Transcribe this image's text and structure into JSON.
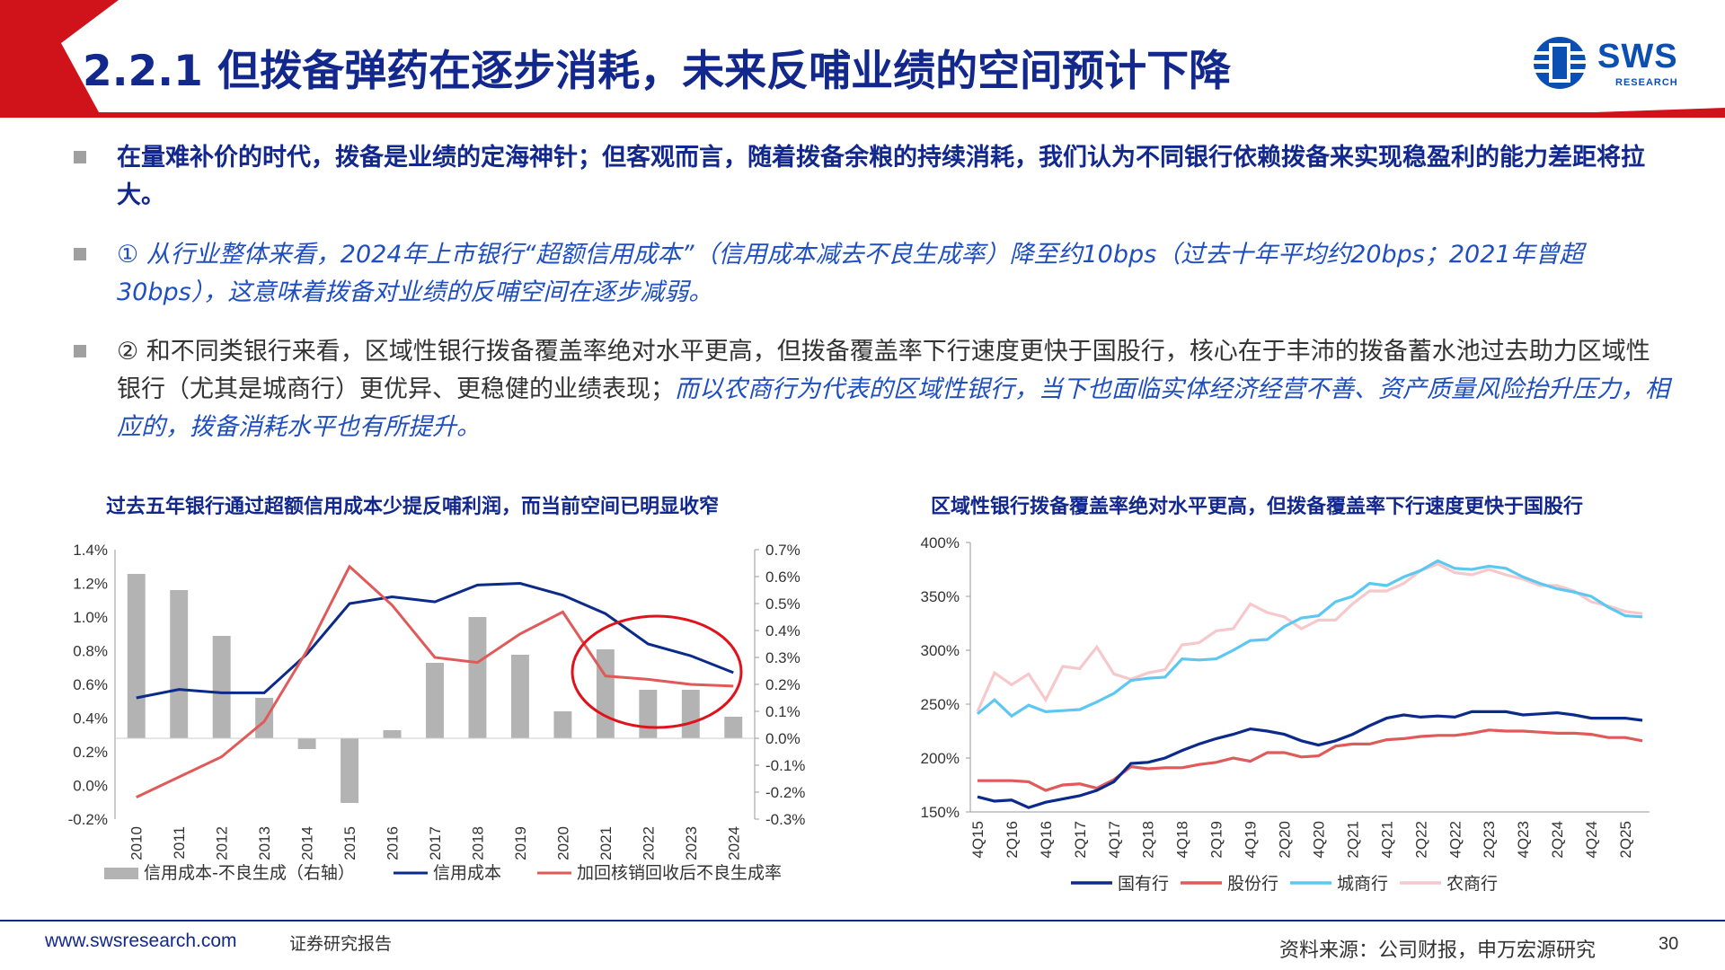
{
  "header": {
    "title": "2.2.1 但拨备弹药在逐步消耗，未来反哺业绩的空间预计下降",
    "logo_text": "SWS",
    "logo_sub": "RESEARCH",
    "accent_red": "#d0121b",
    "brand_blue": "#12288c"
  },
  "bullets": [
    {
      "text": "在量难补价的时代，拨备是业绩的定海神针；但客观而言，随着拨备余粮的持续消耗，我们认为不同银行依赖拨备来实现稳盈利的能力差距将拉大。"
    },
    {
      "text": "① 从行业整体来看，2024年上市银行“超额信用成本”（信用成本减去不良生成率）降至约10bps（过去十年平均约20bps；2021年曾超30bps），这意味着拨备对业绩的反哺空间在逐步减弱。"
    },
    {
      "text_plain": "② 和不同类银行来看，区域性银行拨备覆盖率绝对水平更高，但拨备覆盖率下行速度更快于国股行，核心在于丰沛的拨备蓄水池过去助力区域性银行（尤其是城商行）更优异、更稳健的业绩表现；",
      "text_emph": "而以农商行为代表的区域性银行，当下也面临实体经济经营不善、资产质量风险抬升压力，相应的，拨备消耗水平也有所提升。"
    }
  ],
  "chart_titles": {
    "left": "过去五年银行通过超额信用成本少提反哺利润，而当前空间已明显收窄",
    "right": "区域性银行拨备覆盖率绝对水平更高，但拨备覆盖率下行速度更快于国股行"
  },
  "chart_data": [
    {
      "type": "bar+line",
      "title": "过去五年银行通过超额信用成本少提反哺利润，而当前空间已明显收窄",
      "categories": [
        "2010",
        "2011",
        "2012",
        "2013",
        "2014",
        "2015",
        "2016",
        "2017",
        "2018",
        "2019",
        "2020",
        "2021",
        "2022",
        "2023",
        "2024"
      ],
      "y_left": {
        "range": [
          -0.2,
          1.4
        ],
        "ticks": [
          "-0.2%",
          "0.0%",
          "0.2%",
          "0.4%",
          "0.6%",
          "0.8%",
          "1.0%",
          "1.2%",
          "1.4%"
        ]
      },
      "y_right": {
        "range": [
          -0.3,
          0.7
        ],
        "ticks": [
          "-0.3%",
          "-0.2%",
          "-0.1%",
          "0.0%",
          "0.1%",
          "0.2%",
          "0.3%",
          "0.4%",
          "0.5%",
          "0.6%",
          "0.7%"
        ]
      },
      "series": [
        {
          "name": "信用成本-不良生成（右轴）",
          "type": "bar",
          "axis": "right",
          "color": "#b3b3b3",
          "values": [
            0.61,
            0.55,
            0.38,
            0.15,
            -0.04,
            -0.24,
            0.03,
            0.28,
            0.45,
            0.31,
            0.1,
            0.33,
            0.18,
            0.18,
            0.08
          ]
        },
        {
          "name": "信用成本",
          "type": "line",
          "axis": "left",
          "color": "#0b2a8a",
          "values": [
            0.52,
            0.57,
            0.55,
            0.55,
            0.78,
            1.08,
            1.12,
            1.09,
            1.19,
            1.2,
            1.13,
            1.02,
            0.84,
            0.77,
            0.67
          ]
        },
        {
          "name": "加回核销回收后不良生成率",
          "type": "line",
          "axis": "left",
          "color": "#e05a5a",
          "values": [
            -0.07,
            0.05,
            0.17,
            0.38,
            0.8,
            1.3,
            1.07,
            0.76,
            0.73,
            0.9,
            1.03,
            0.65,
            0.63,
            0.6,
            0.59
          ]
        }
      ],
      "legend_position": "bottom"
    },
    {
      "type": "line",
      "title": "区域性银行拨备覆盖率绝对水平更高，但拨备覆盖率下行速度更快于国股行",
      "x": [
        "4Q15",
        "1Q16",
        "2Q16",
        "3Q16",
        "4Q16",
        "1Q17",
        "2Q17",
        "3Q17",
        "4Q17",
        "1Q18",
        "2Q18",
        "3Q18",
        "4Q18",
        "1Q19",
        "2Q19",
        "3Q19",
        "4Q19",
        "1Q20",
        "2Q20",
        "3Q20",
        "4Q20",
        "1Q21",
        "2Q21",
        "3Q21",
        "4Q21",
        "1Q22",
        "2Q22",
        "3Q22",
        "4Q22",
        "1Q23",
        "2Q23",
        "3Q23",
        "4Q23",
        "1Q24",
        "2Q24",
        "3Q24",
        "4Q24",
        "1Q25",
        "2Q25",
        "3Q25"
      ],
      "x_tick_labels": [
        "4Q15",
        "2Q16",
        "4Q16",
        "2Q17",
        "4Q17",
        "2Q18",
        "4Q18",
        "2Q19",
        "4Q19",
        "2Q20",
        "4Q20",
        "2Q21",
        "4Q21",
        "2Q22",
        "4Q22",
        "2Q23",
        "4Q23",
        "2Q24",
        "4Q24",
        "2Q25"
      ],
      "y": {
        "range": [
          150,
          400
        ],
        "ticks": [
          "150%",
          "200%",
          "250%",
          "300%",
          "350%",
          "400%"
        ]
      },
      "series": [
        {
          "name": "国有行",
          "color": "#0b2a8a",
          "values": [
            164,
            160,
            161,
            154,
            159,
            162,
            165,
            170,
            178,
            195,
            196,
            200,
            207,
            213,
            218,
            222,
            227,
            225,
            222,
            216,
            212,
            216,
            222,
            230,
            237,
            240,
            238,
            239,
            238,
            243,
            243,
            243,
            240,
            241,
            242,
            240,
            237,
            237,
            237,
            235
          ]
        },
        {
          "name": "股份行",
          "color": "#e05a5a",
          "values": [
            179,
            179,
            179,
            178,
            170,
            175,
            176,
            172,
            180,
            192,
            190,
            191,
            191,
            194,
            196,
            200,
            197,
            205,
            205,
            201,
            202,
            211,
            213,
            213,
            217,
            218,
            220,
            221,
            221,
            223,
            226,
            225,
            225,
            224,
            223,
            223,
            222,
            219,
            219,
            216
          ]
        },
        {
          "name": "城商行",
          "color": "#5cc8f2",
          "values": [
            241,
            254,
            239,
            249,
            243,
            244,
            245,
            252,
            260,
            272,
            274,
            275,
            292,
            291,
            292,
            300,
            309,
            310,
            322,
            330,
            332,
            345,
            350,
            362,
            360,
            368,
            374,
            383,
            376,
            375,
            378,
            376,
            368,
            362,
            357,
            354,
            350,
            340,
            332,
            331
          ]
        },
        {
          "name": "农商行",
          "color": "#f6c8cc",
          "values": [
            243,
            279,
            268,
            278,
            254,
            285,
            283,
            303,
            278,
            273,
            279,
            282,
            305,
            307,
            318,
            320,
            343,
            335,
            331,
            320,
            328,
            328,
            343,
            355,
            355,
            362,
            374,
            380,
            372,
            370,
            375,
            370,
            366,
            360,
            360,
            355,
            345,
            341,
            336,
            334
          ]
        }
      ],
      "legend_position": "bottom"
    }
  ],
  "footer": {
    "url": "www.swsresearch.com",
    "tag": "证券研究报告",
    "source": "资料来源：公司财报，申万宏源研究",
    "page": "30"
  }
}
